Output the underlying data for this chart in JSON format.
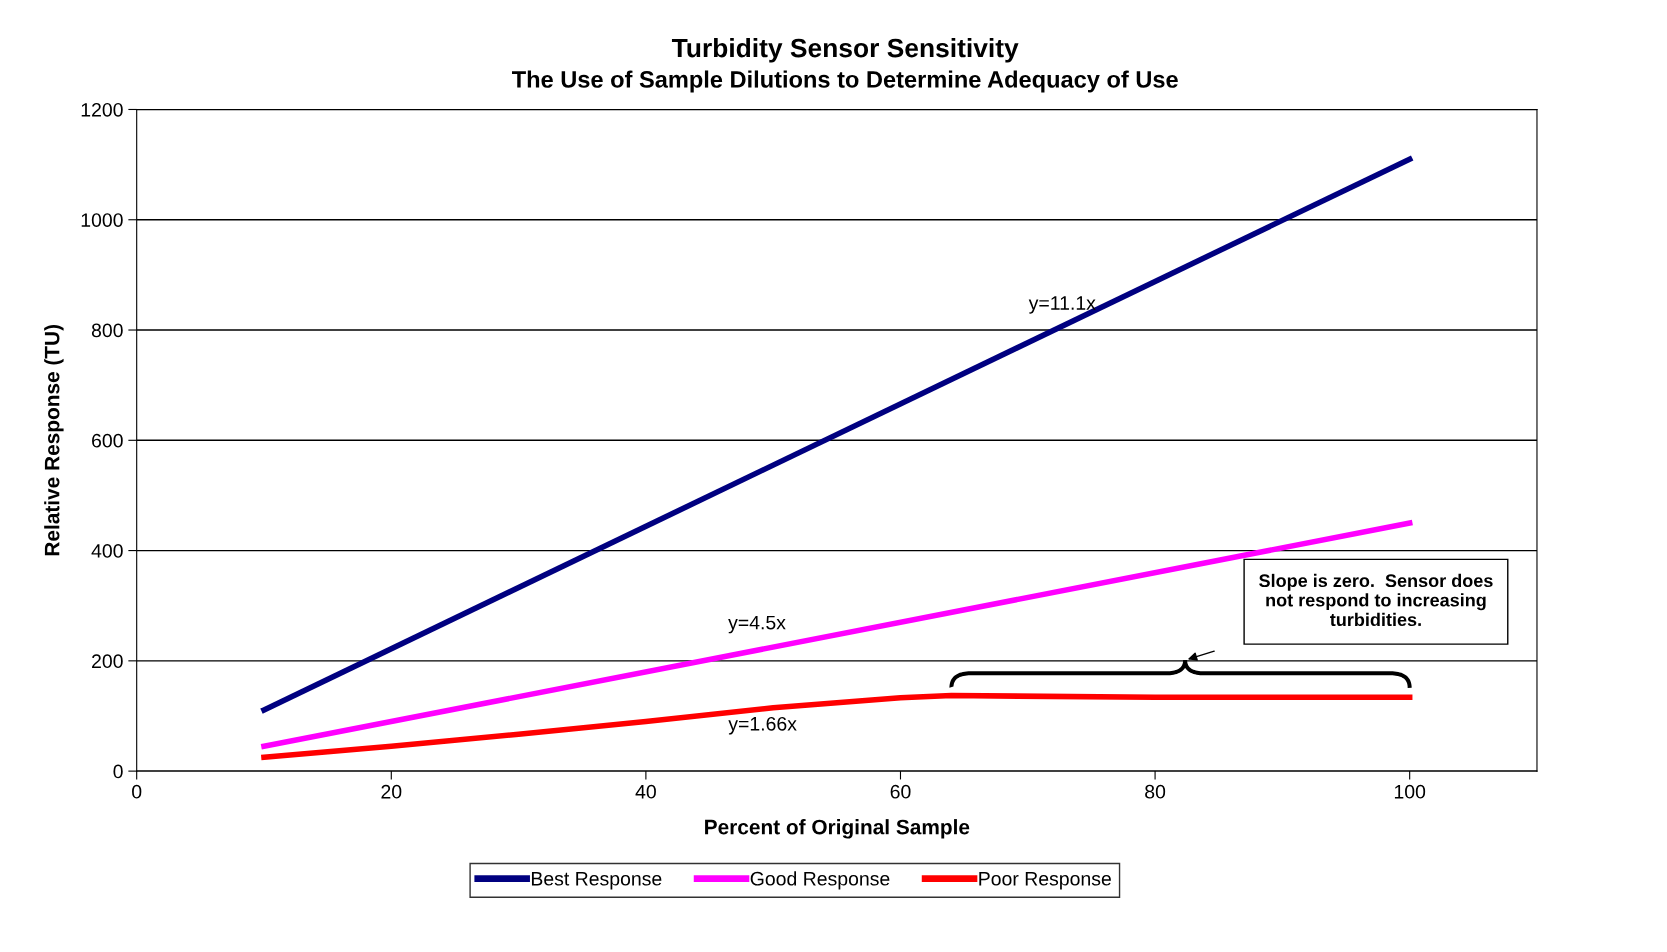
{
  "chart_data": {
    "type": "line",
    "title": "Turbidity Sensor Sensitivity",
    "subtitle": "The Use of Sample Dilutions to Determine Adequacy of Use",
    "xlabel": "Percent of Original Sample",
    "ylabel": "Relative Response (TU)",
    "series": [
      {
        "name": "Best Response",
        "color": "#000080",
        "x": [
          10,
          100
        ],
        "values": [
          111,
          1110
        ]
      },
      {
        "name": "Good Response",
        "color": "#ff00ff",
        "x": [
          10,
          100
        ],
        "values": [
          45,
          450
        ]
      },
      {
        "name": "Poor Response",
        "color": "#ff0000",
        "x": [
          10,
          20,
          30,
          40,
          50,
          60,
          64,
          80,
          100
        ],
        "values": [
          25,
          45,
          67,
          90,
          115,
          133,
          137,
          134,
          134
        ]
      }
    ],
    "annotations": [
      "y=11.1x",
      "y=4.5x",
      "y=1.66x",
      "Slope is zero.  Sensor does\nnot respond to increasing\nturbidities."
    ],
    "xlim": [
      0,
      110
    ],
    "xticks": [
      0,
      20,
      40,
      60,
      80,
      100
    ],
    "ylim": [
      0,
      1200
    ],
    "yticks": [
      0,
      200,
      400,
      600,
      800,
      1000,
      1200
    ],
    "grid": "y",
    "legend": "bottom",
    "marker": "none",
    "line_style": "solid"
  }
}
